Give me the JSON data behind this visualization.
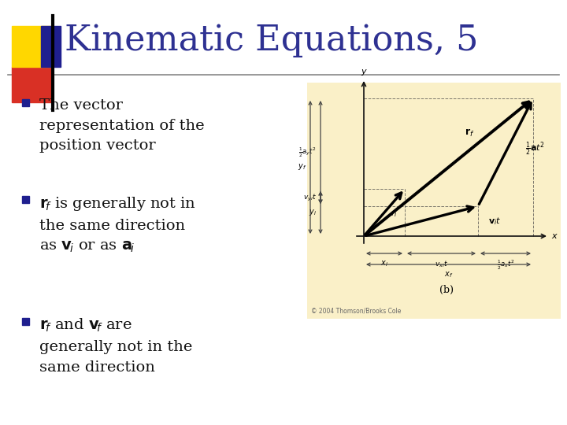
{
  "title": "Kinematic Equations, 5",
  "title_color": "#2E3192",
  "title_fontsize": 32,
  "background_color": "#FFFFFF",
  "bullet_square_color": "#1F1F8F",
  "text_color": "#111111",
  "bullet1": "The vector\nrepresentation of the\nposition vector",
  "diagram_bg": "#FAF0C8",
  "copyright": "© 2004 Thomson/Brooks Cole",
  "accent_yellow": "#FFD700",
  "accent_red": "#D93025",
  "accent_blue": "#1F1F8F",
  "dim_color": "#444444",
  "arrow_color": "#111111"
}
